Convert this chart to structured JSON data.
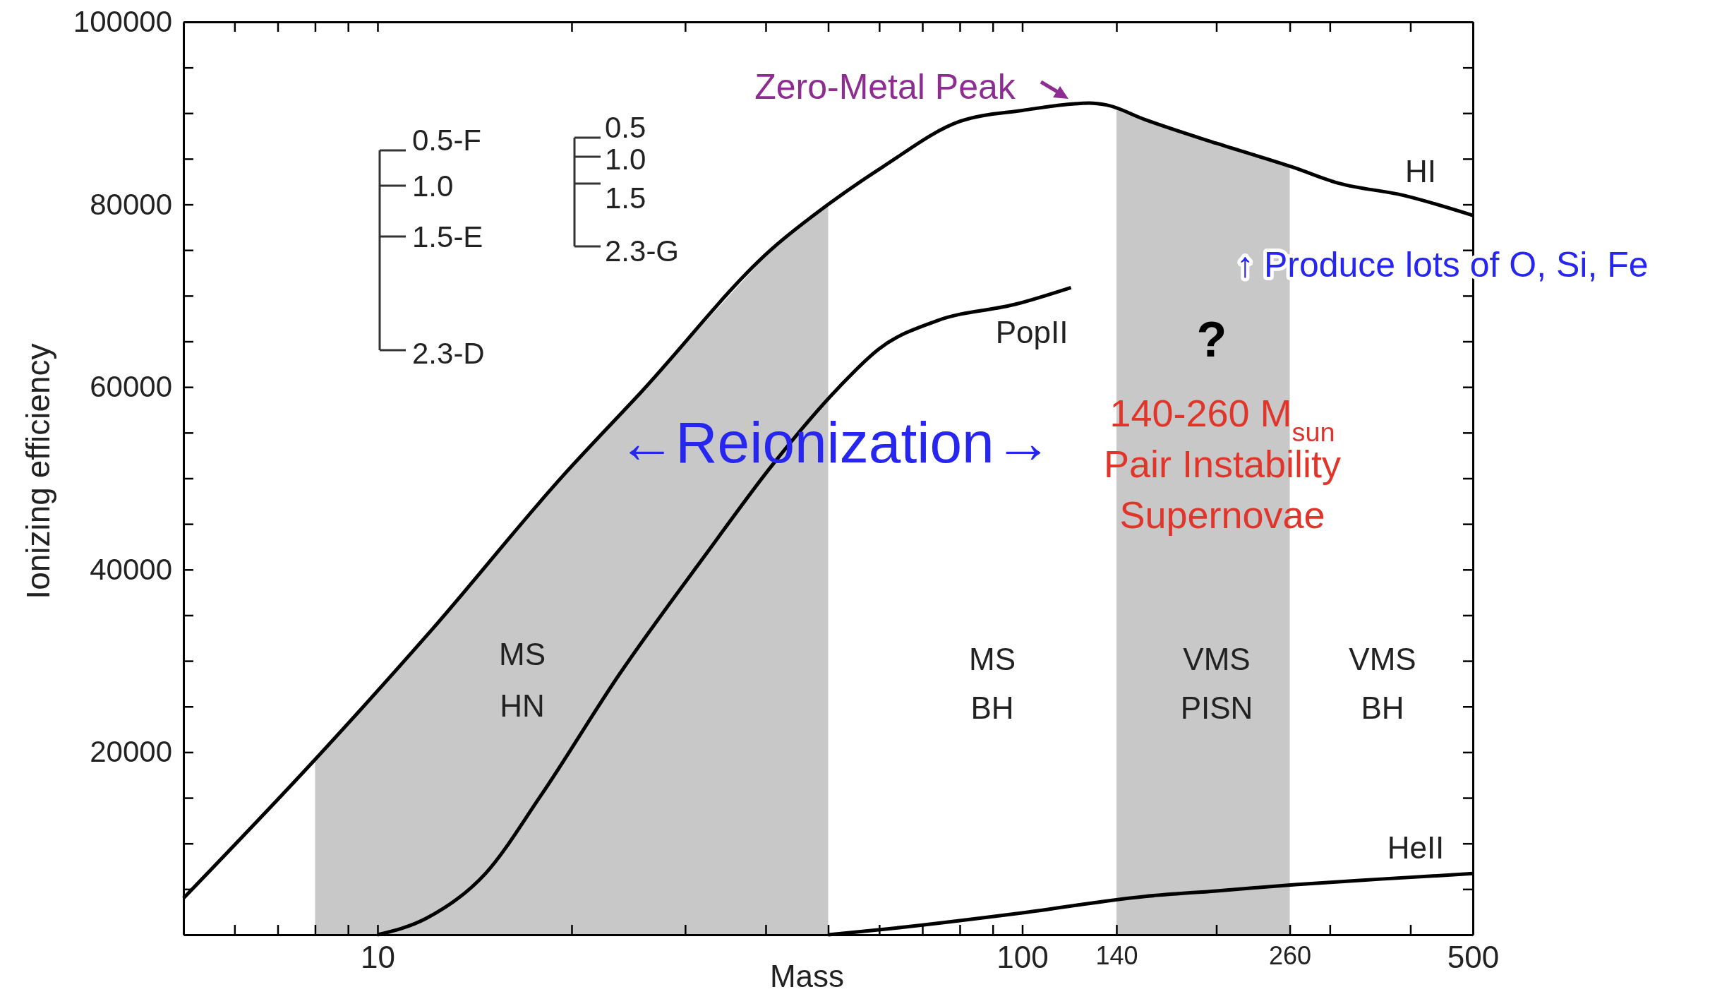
{
  "chart_data": {
    "type": "line",
    "legend": "right",
    "xlabel": "Mass",
    "ylabel": "Ionizing efficiency",
    "log": "x",
    "xlim": [
      5,
      500
    ],
    "ylim": [
      0,
      100000
    ],
    "xticks": [
      {
        "value": 6,
        "label": null
      },
      {
        "value": 7,
        "label": null
      },
      {
        "value": 8,
        "label": null
      },
      {
        "value": 9,
        "label": null
      },
      10,
      {
        "value": 20,
        "label": null
      },
      {
        "value": 30,
        "label": null
      },
      {
        "value": 40,
        "label": null
      },
      {
        "value": 50,
        "label": null
      },
      {
        "value": 60,
        "label": null
      },
      {
        "value": 70,
        "label": null
      },
      {
        "value": 80,
        "label": null
      },
      {
        "value": 90,
        "label": null
      },
      100,
      140,
      {
        "value": 200,
        "label": null
      },
      260,
      {
        "value": 300,
        "label": null
      },
      {
        "value": 400,
        "label": null
      },
      500
    ],
    "yticks": [
      {
        "value": 5000,
        "label": null
      },
      {
        "value": 10000,
        "label": null
      },
      {
        "value": 15000,
        "label": null
      },
      20000,
      {
        "value": 25000,
        "label": null
      },
      {
        "value": 30000,
        "label": null
      },
      {
        "value": 35000,
        "label": null
      },
      40000,
      {
        "value": 45000,
        "label": null
      },
      {
        "value": 50000,
        "label": null
      },
      {
        "value": 55000,
        "label": null
      },
      60000,
      {
        "value": 65000,
        "label": null
      },
      {
        "value": 70000,
        "label": null
      },
      {
        "value": 75000,
        "label": null
      },
      80000,
      {
        "value": 85000,
        "label": null
      },
      {
        "value": 90000,
        "label": null
      },
      {
        "value": 95000,
        "label": null
      },
      100000
    ],
    "series": [
      {
        "name": "HI",
        "color": "#000000",
        "x": [
          5,
          8,
          12.1,
          19.4,
          25.6,
          41,
          50,
          61,
          80,
          100,
          127,
          135,
          155,
          200,
          265,
          307,
          390,
          500
        ],
        "values": [
          4000,
          19200,
          33300,
          50300,
          59400,
          75200,
          80000,
          84200,
          89100,
          90300,
          91100,
          90900,
          89300,
          86700,
          84000,
          82400,
          81000,
          78800
        ]
      },
      {
        "name": "PopII",
        "color": "#000000",
        "x": [
          10,
          11.9,
          14.7,
          17.9,
          23.7,
          32.4,
          41,
          52,
          60,
          74,
          98,
          119
        ],
        "values": [
          0,
          1800,
          6700,
          15200,
          28500,
          41800,
          51500,
          60000,
          64200,
          67300,
          69100,
          70900
        ]
      },
      {
        "name": "HeII",
        "color": "#000000",
        "x": [
          50,
          61,
          100,
          155,
          200,
          265,
          360,
          500
        ],
        "values": [
          0,
          600,
          2400,
          4200,
          4800,
          5500,
          6100,
          6700
        ]
      }
    ],
    "bands": [
      {
        "axis": "x",
        "from": 8,
        "to": 50,
        "color": "#c8c8c8"
      },
      {
        "axis": "x",
        "from": 140,
        "to": 260,
        "color": "#c8c8c8"
      }
    ],
    "annotations": [
      "Zero-Metal Peak",
      "↑ Produce lots of O, Si, Fe",
      "?",
      "140-260 M$_{sun}$",
      "Pair Instability",
      "Supernovae",
      "←Reionization→",
      "MS",
      "HN",
      "MS",
      "BH",
      "VMS",
      "PISN",
      "VMS",
      "BH",
      "0.5-F",
      "1.0",
      "1.5-E",
      "2.3-D",
      "0.5",
      "1.0",
      "1.5",
      "2.3-G"
    ]
  }
}
